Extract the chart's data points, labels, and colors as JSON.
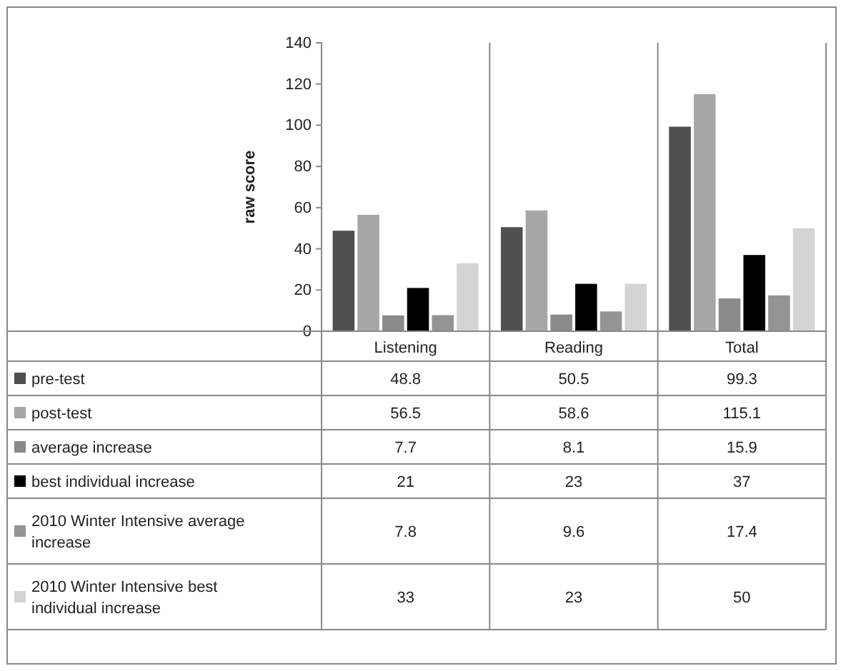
{
  "chart_data": {
    "type": "bar",
    "ylabel": "raw score",
    "categories": [
      "Listening",
      "Reading",
      "Total"
    ],
    "series": [
      {
        "name": "pre-test",
        "color": "#505050",
        "values": [
          48.8,
          50.5,
          99.3
        ]
      },
      {
        "name": "post-test",
        "color": "#a6a6a6",
        "values": [
          56.5,
          58.6,
          115.1
        ]
      },
      {
        "name": "average increase",
        "color": "#8a8a8a",
        "values": [
          7.7,
          8.1,
          15.9
        ]
      },
      {
        "name": "best individual increase",
        "color": "#000000",
        "values": [
          21,
          23,
          37
        ]
      },
      {
        "name": "2010 Winter Intensive average increase",
        "color": "#949494",
        "values": [
          7.8,
          9.6,
          17.4
        ]
      },
      {
        "name": "2010 Winter Intensive best individual increase",
        "color": "#d4d4d4",
        "values": [
          33,
          23,
          50
        ]
      }
    ],
    "ylim": [
      0,
      140
    ],
    "yticks": [
      0,
      20,
      40,
      60,
      80,
      100,
      120,
      140
    ],
    "grid": false,
    "legend": "bottom left",
    "data_labels": true
  }
}
